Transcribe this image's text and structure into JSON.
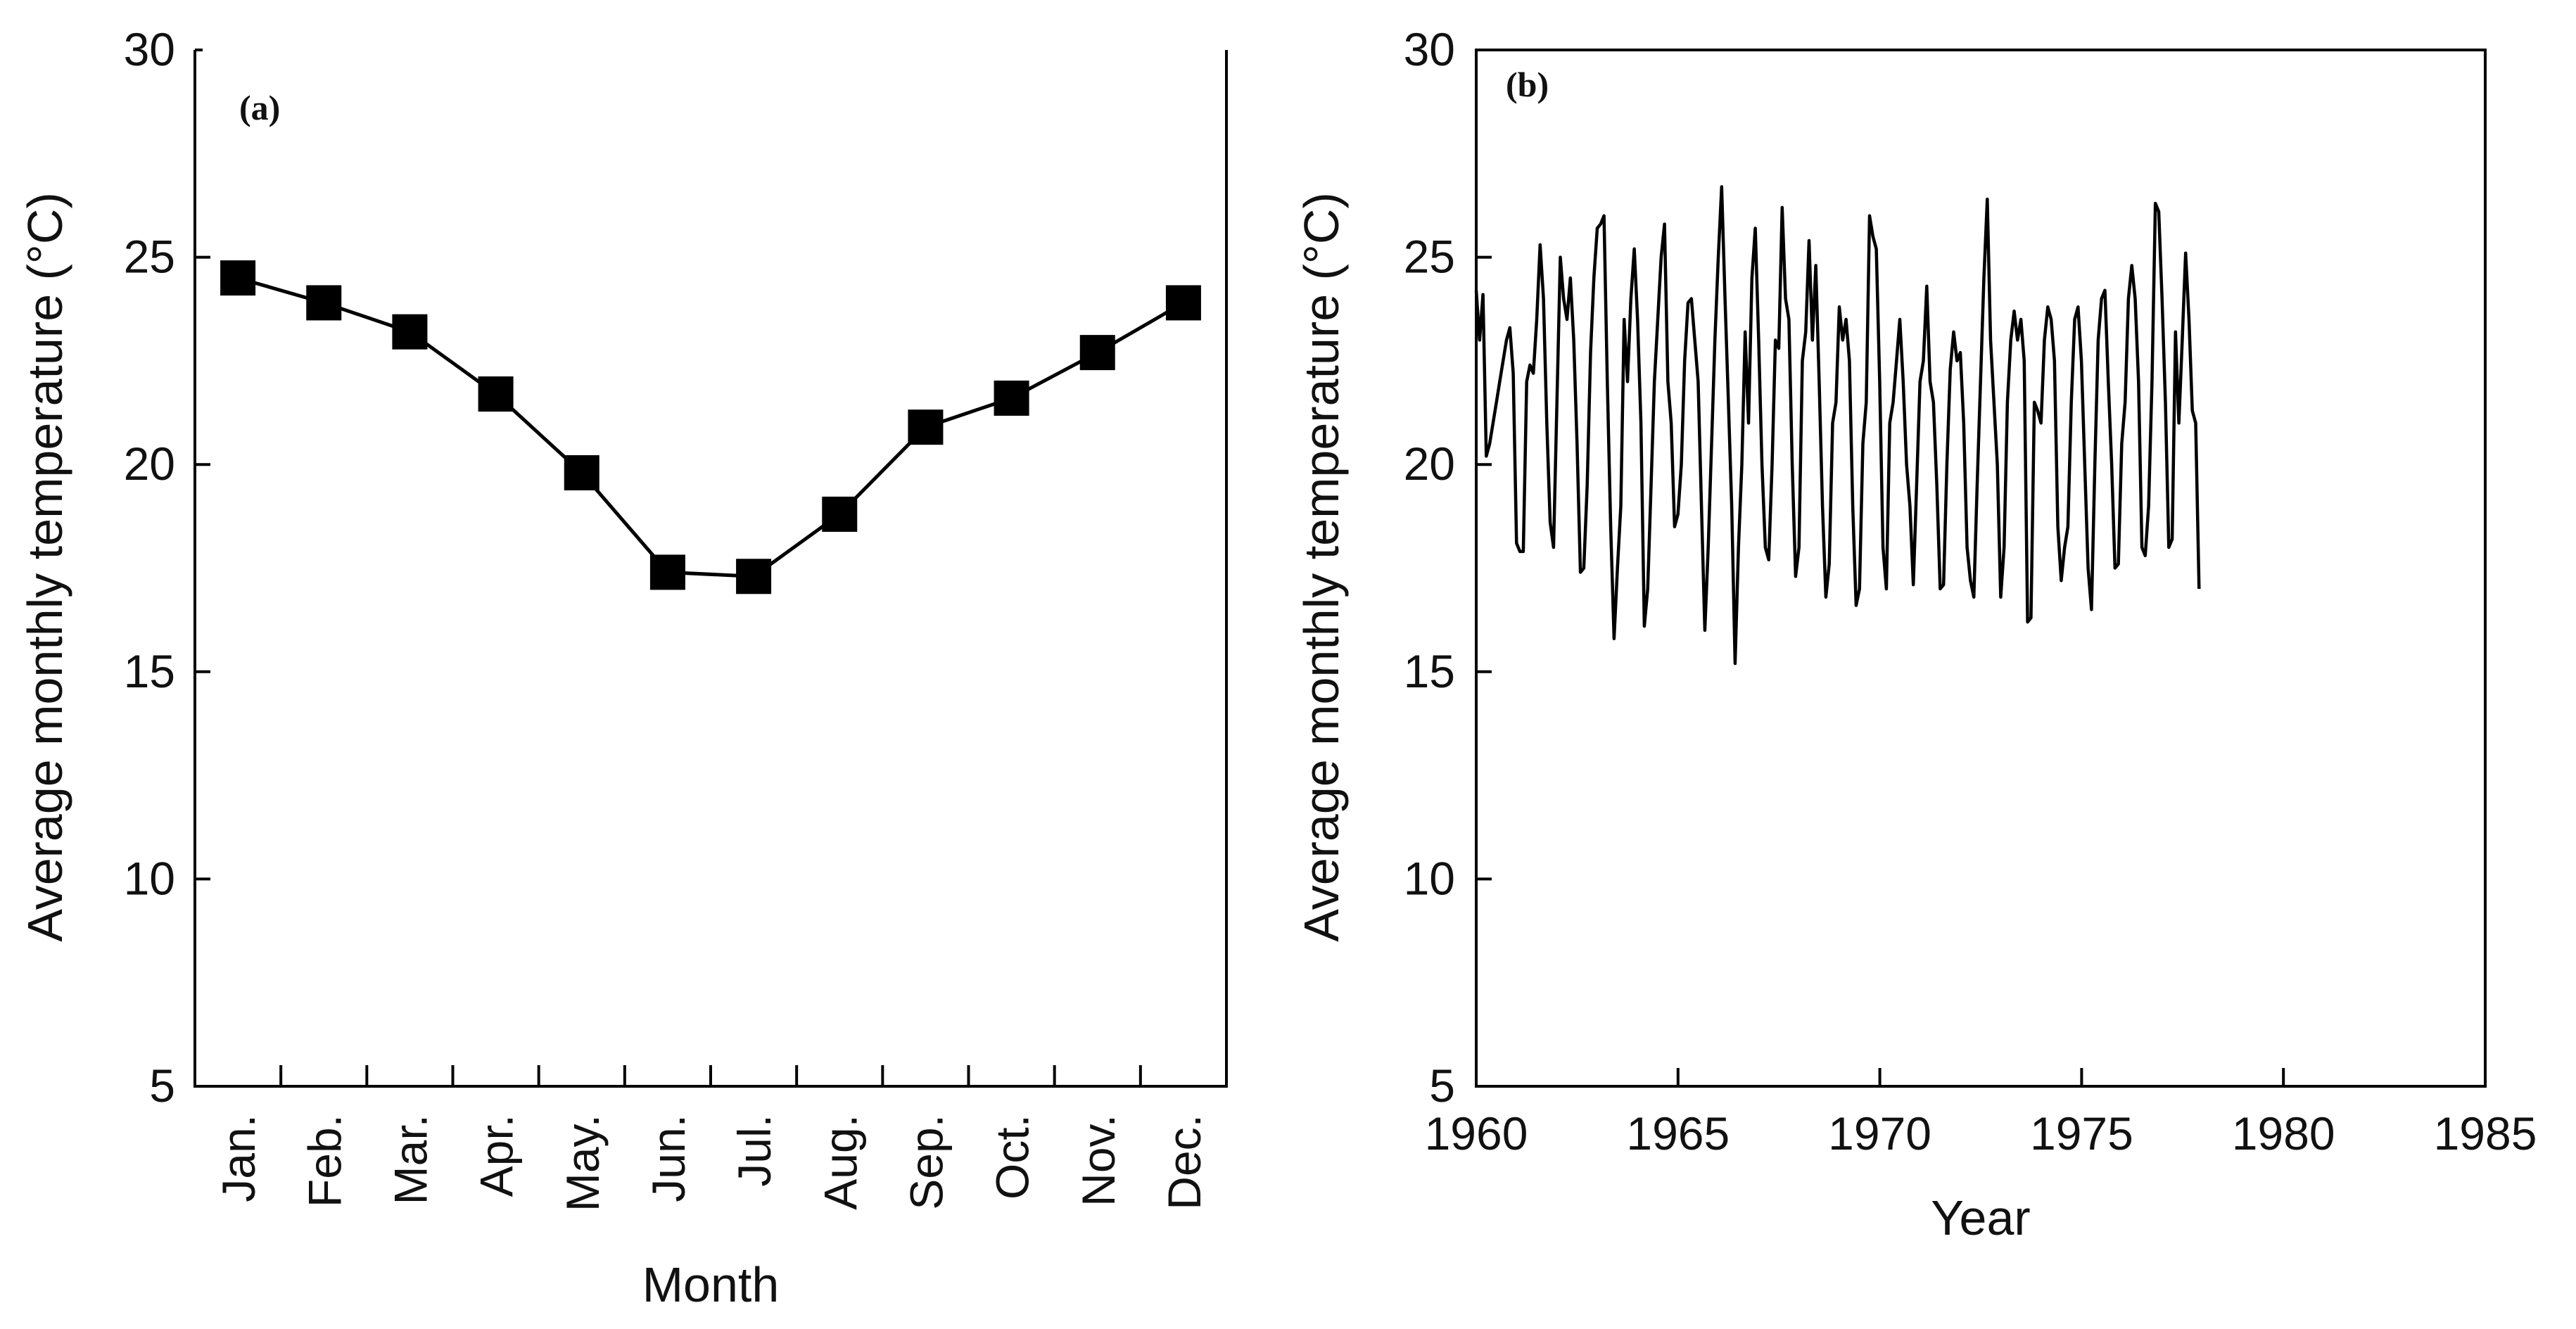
{
  "chart_data": [
    {
      "type": "line",
      "panel_label": "(a)",
      "title": "",
      "xlabel": "Month",
      "ylabel": "Average monthly temperature (°C)",
      "categories": [
        "Jan.",
        "Feb.",
        "Mar.",
        "Apr.",
        "May.",
        "Jun.",
        "Jul.",
        "Aug.",
        "Sep.",
        "Oct.",
        "Nov.",
        "Dec."
      ],
      "values": [
        24.5,
        23.9,
        23.2,
        21.7,
        19.8,
        17.4,
        17.3,
        18.8,
        20.9,
        21.6,
        22.7,
        23.9
      ],
      "marker": "square",
      "ylim": [
        5,
        30
      ],
      "yticks": [
        "5",
        "10",
        "15",
        "20",
        "25",
        "30"
      ],
      "grid": false,
      "line_color": "#000000"
    },
    {
      "type": "line",
      "panel_label": "(b)",
      "title": "",
      "xlabel": "Year",
      "ylabel": "Average monthly temperature (°C)",
      "x_start": 1960.0,
      "x_step_years": 0.0833,
      "values": [
        24.2,
        23.0,
        24.1,
        20.2,
        20.5,
        21.0,
        21.5,
        22.0,
        22.5,
        23.0,
        23.3,
        22.2,
        18.1,
        17.9,
        17.9,
        22.0,
        22.4,
        22.2,
        23.5,
        25.3,
        24.0,
        21.0,
        18.6,
        18.0,
        21.5,
        25.0,
        24.0,
        23.5,
        24.5,
        23.0,
        20.5,
        17.4,
        17.5,
        19.5,
        22.7,
        24.5,
        25.7,
        25.8,
        26.0,
        22.0,
        18.5,
        15.8,
        17.5,
        19.0,
        23.5,
        22.0,
        24.0,
        25.2,
        23.5,
        21.0,
        16.1,
        17.0,
        19.5,
        22.0,
        23.5,
        25.0,
        25.8,
        22.0,
        21.0,
        18.5,
        18.8,
        20.0,
        22.5,
        23.9,
        24.0,
        23.0,
        22.0,
        19.0,
        16.0,
        18.0,
        20.5,
        23.0,
        25.0,
        26.7,
        24.0,
        21.5,
        19.0,
        15.2,
        18.0,
        20.0,
        23.2,
        21.0,
        24.5,
        25.7,
        23.0,
        20.0,
        18.0,
        17.7,
        20.0,
        23.0,
        22.8,
        26.2,
        24.0,
        23.5,
        20.0,
        17.3,
        18.0,
        22.5,
        23.2,
        25.4,
        23.0,
        24.8,
        22.0,
        19.0,
        16.8,
        17.6,
        21.0,
        21.5,
        23.8,
        23.0,
        23.5,
        22.5,
        19.0,
        16.6,
        17.0,
        20.5,
        21.5,
        26.0,
        25.5,
        25.2,
        22.0,
        18.0,
        17.0,
        21.0,
        21.5,
        22.5,
        23.5,
        22.0,
        20.0,
        19.0,
        17.1,
        19.5,
        22.0,
        22.5,
        24.3,
        22.0,
        21.5,
        19.5,
        17.0,
        17.1,
        20.0,
        22.3,
        23.2,
        22.5,
        22.7,
        21.0,
        18.0,
        17.2,
        16.8,
        19.5,
        22.0,
        24.5,
        26.4,
        23.0,
        21.5,
        20.0,
        16.8,
        18.0,
        21.5,
        23.0,
        23.7,
        23.0,
        23.5,
        22.5,
        16.2,
        16.3,
        21.5,
        21.3,
        21.0,
        23.0,
        23.8,
        23.5,
        22.5,
        18.5,
        17.2,
        18.0,
        18.5,
        21.5,
        23.5,
        23.8,
        22.5,
        20.0,
        17.5,
        16.5,
        20.0,
        23.0,
        24.0,
        24.2,
        22.0,
        20.0,
        17.5,
        17.6,
        20.5,
        21.5,
        24.0,
        24.8,
        24.0,
        22.0,
        18.0,
        17.8,
        19.0,
        22.0,
        26.3,
        26.1,
        24.0,
        21.5,
        18.0,
        18.2,
        23.2,
        21.0,
        23.0,
        25.1,
        23.5,
        21.3,
        21.0,
        17.0
      ],
      "xlim": [
        1960,
        1985
      ],
      "ylim": [
        5,
        30
      ],
      "xticks": [
        "1960",
        "1965",
        "1970",
        "1975",
        "1980",
        "1985"
      ],
      "yticks": [
        "5",
        "10",
        "15",
        "20",
        "25",
        "30"
      ],
      "grid": false,
      "line_color": "#000000"
    }
  ]
}
